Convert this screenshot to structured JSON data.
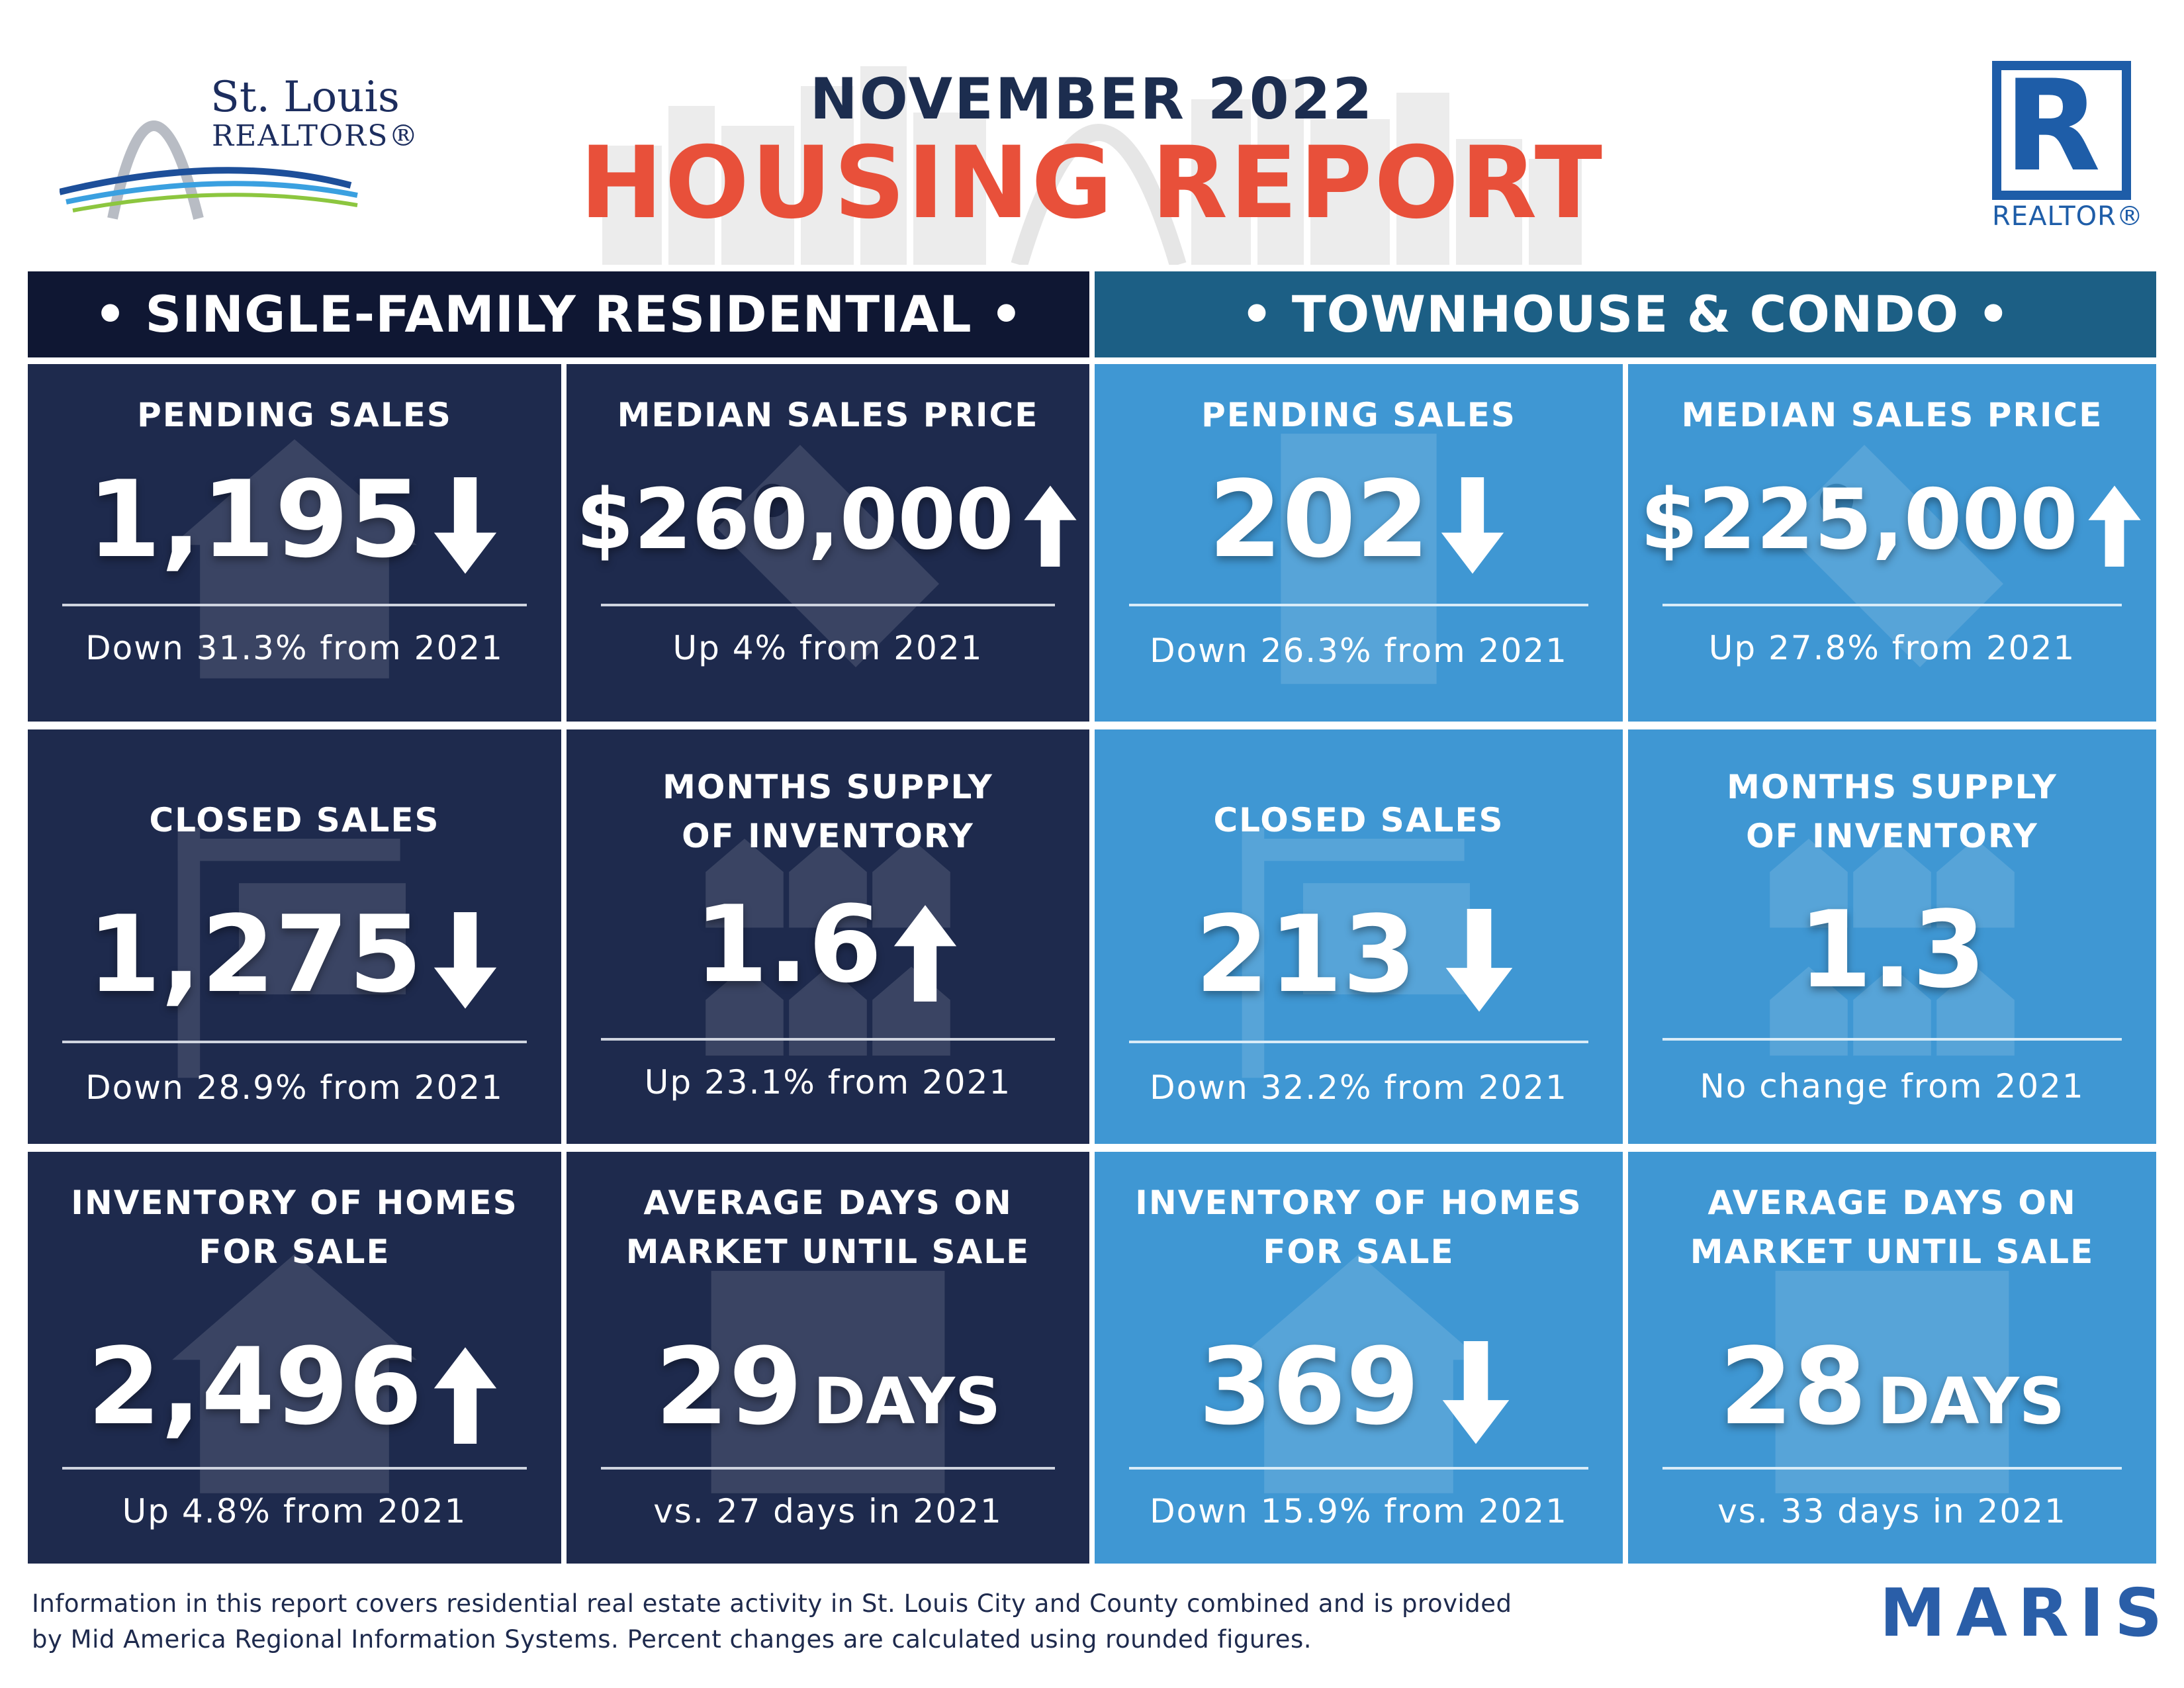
{
  "header": {
    "org_name_line1": "St. Louis",
    "org_name_line2": "REALTORS®",
    "title_month": "NOVEMBER 2022",
    "title_main": "HOUSING REPORT",
    "realtor_mark": "R",
    "realtor_word": "REALTOR®"
  },
  "sections": {
    "single_family": "• SINGLE-FAMILY RESIDENTIAL •",
    "townhouse_condo": "• TOWNHOUSE & CONDO •"
  },
  "single_family": {
    "pending_sales": {
      "label": "PENDING SALES",
      "value": "1,195",
      "trend": "down",
      "change": "Down 31.3% from 2021",
      "icon": "house-icon"
    },
    "median_sales_price": {
      "label": "MEDIAN SALES PRICE",
      "value": "$260,000",
      "trend": "up",
      "change": "Up 4% from 2021",
      "icon": "price-tag-icon"
    },
    "closed_sales": {
      "label": "CLOSED SALES",
      "value": "1,275",
      "trend": "down",
      "change": "Down 28.9% from 2021",
      "icon": "sign-icon"
    },
    "months_supply": {
      "label_line1": "MONTHS SUPPLY",
      "label_line2": "OF INVENTORY",
      "value": "1.6",
      "trend": "up",
      "change": "Up 23.1% from 2021",
      "icon": "houses-icon"
    },
    "inventory": {
      "label_line1": "INVENTORY OF HOMES",
      "label_line2": "FOR SALE",
      "value": "2,496",
      "trend": "up",
      "change": "Up 4.8% from 2021",
      "icon": "for-sale-icon"
    },
    "days_on_market": {
      "label_line1": "AVERAGE DAYS ON",
      "label_line2": "MARKET UNTIL SALE",
      "value": "29",
      "unit": "DAYS",
      "change": "vs. 27 days in 2021",
      "icon": "calendar-icon"
    }
  },
  "townhouse_condo": {
    "pending_sales": {
      "label": "PENDING SALES",
      "value": "202",
      "trend": "down",
      "change": "Down 26.3% from 2021",
      "icon": "building-icon"
    },
    "median_sales_price": {
      "label": "MEDIAN SALES PRICE",
      "value": "$225,000",
      "trend": "up",
      "change": "Up 27.8% from 2021",
      "icon": "price-tag-icon"
    },
    "closed_sales": {
      "label": "CLOSED SALES",
      "value": "213",
      "trend": "down",
      "change": "Down 32.2% from 2021",
      "icon": "sign-icon"
    },
    "months_supply": {
      "label_line1": "MONTHS SUPPLY",
      "label_line2": "OF INVENTORY",
      "value": "1.3",
      "trend": "none",
      "change": "No change from 2021",
      "icon": "houses-icon"
    },
    "inventory": {
      "label_line1": "INVENTORY OF HOMES",
      "label_line2": "FOR SALE",
      "value": "369",
      "trend": "down",
      "change": "Down 15.9% from 2021",
      "icon": "for-sale-icon"
    },
    "days_on_market": {
      "label_line1": "AVERAGE DAYS ON",
      "label_line2": "MARKET UNTIL SALE",
      "value": "28",
      "unit": "DAYS",
      "change": "vs. 33 days in 2021",
      "icon": "calendar-icon"
    }
  },
  "footer": {
    "note_line1": "Information in this report covers residential real estate activity in St. Louis City and County combined and is provided",
    "note_line2": "by Mid America Regional Information Systems. Percent changes are calculated using rounded figures.",
    "brand": "MARIS"
  },
  "colors": {
    "navy": "#1e2a4d",
    "sky_blue": "#3f97d3",
    "header_navy": "#0f1733",
    "header_teal": "#1c5f85",
    "accent_red": "#e8503a",
    "realtor_blue": "#1e5da8"
  }
}
